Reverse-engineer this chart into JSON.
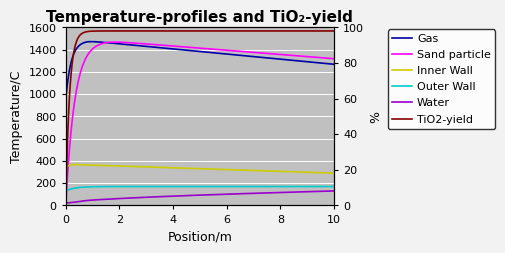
{
  "title": "Temperature-profiles and TiO₂-yield",
  "xlabel": "Position/m",
  "ylabel_left": "Temperature/C",
  "ylabel_right": "%",
  "xlim": [
    0,
    10
  ],
  "ylim_left": [
    0,
    1600
  ],
  "ylim_right": [
    0,
    100
  ],
  "yticks_left": [
    0,
    200,
    400,
    600,
    800,
    1000,
    1200,
    1400,
    1600
  ],
  "yticks_right": [
    0,
    20,
    40,
    60,
    80,
    100
  ],
  "xticks": [
    0,
    2,
    4,
    6,
    8,
    10
  ],
  "fig_background": "#f2f2f2",
  "plot_background": "#c0c0c0",
  "grid_color": "#808080",
  "legend_entries": [
    "Gas",
    "Sand particle",
    "Inner Wall",
    "Outer Wall",
    "Water",
    "TiO2-yield"
  ],
  "line_colors": [
    "#0000aa",
    "#ff00ff",
    "#cccc00",
    "#00cccc",
    "#9900cc",
    "#880000"
  ],
  "title_fontsize": 11,
  "axis_fontsize": 9,
  "tick_fontsize": 8,
  "legend_fontsize": 8
}
